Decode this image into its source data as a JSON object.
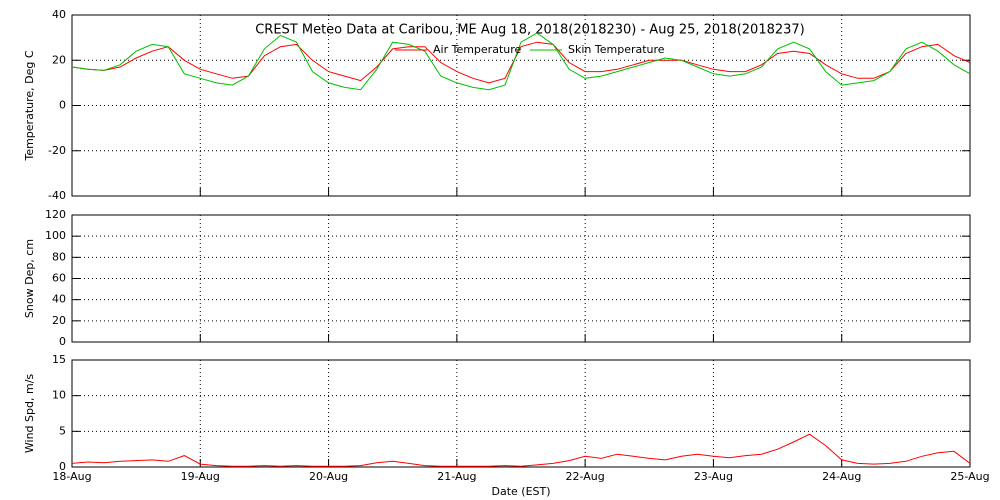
{
  "chart_data": [
    {
      "type": "line",
      "title": "CREST Meteo Data at Caribou, ME   Aug 18, 2018(2018230) - Aug 25, 2018(2018237)",
      "y_label": "Temperature, Deg C",
      "x": [
        0,
        0.125,
        0.25,
        0.375,
        0.5,
        0.625,
        0.75,
        0.875,
        1,
        1.125,
        1.25,
        1.375,
        1.5,
        1.625,
        1.75,
        1.875,
        2,
        2.125,
        2.25,
        2.375,
        2.5,
        2.625,
        2.75,
        2.875,
        3,
        3.125,
        3.25,
        3.375,
        3.5,
        3.625,
        3.75,
        3.875,
        4,
        4.125,
        4.25,
        4.375,
        4.5,
        4.625,
        4.75,
        4.875,
        5,
        5.125,
        5.25,
        5.375,
        5.5,
        5.625,
        5.75,
        5.875,
        6,
        6.125,
        6.25,
        6.375,
        6.5,
        6.625,
        6.75,
        6.875,
        7
      ],
      "series": [
        {
          "name": "Air Temperature",
          "color": "#ff0000",
          "values": [
            17,
            16,
            15.5,
            17,
            21,
            24,
            26,
            20,
            16,
            14,
            12,
            13,
            22,
            26,
            27,
            20,
            15,
            13,
            11,
            17,
            25,
            26,
            26,
            19,
            15,
            12,
            10,
            12,
            26,
            28,
            27,
            19,
            15,
            15,
            16,
            18,
            20,
            20,
            20,
            18,
            16,
            15,
            15,
            18,
            23,
            24,
            23,
            18,
            14,
            12,
            12,
            15,
            23,
            26,
            27,
            22,
            19
          ]
        },
        {
          "name": "Skin Temperature",
          "color": "#00c000",
          "values": [
            17,
            16,
            15.5,
            18,
            24,
            27,
            26,
            14,
            12,
            10,
            9,
            13,
            25,
            31,
            28,
            15,
            10,
            8,
            7,
            16,
            28,
            27,
            24,
            13,
            10,
            8,
            7,
            9,
            28,
            32,
            27,
            16,
            12,
            13,
            15,
            17,
            19,
            21,
            20,
            17,
            14,
            13,
            14,
            17,
            25,
            28,
            25,
            15,
            9,
            10,
            11,
            15,
            25,
            28,
            24,
            18,
            14
          ]
        }
      ],
      "xlim": [
        0,
        7
      ],
      "ylim": [
        -40,
        40
      ],
      "yticks": [
        -40,
        -20,
        0,
        20,
        40
      ],
      "grid": true
    },
    {
      "type": "line",
      "y_label": "Snow Dep, cm",
      "series": [],
      "xlim": [
        0,
        7
      ],
      "ylim": [
        0,
        120
      ],
      "yticks": [
        0,
        20,
        40,
        60,
        80,
        100,
        120
      ],
      "grid": true
    },
    {
      "type": "line",
      "y_label": "Wind Spd, m/s",
      "x_label": "Date (EST)",
      "x": [
        0,
        0.125,
        0.25,
        0.375,
        0.5,
        0.625,
        0.75,
        0.875,
        1,
        1.125,
        1.25,
        1.375,
        1.5,
        1.625,
        1.75,
        1.875,
        2,
        2.125,
        2.25,
        2.375,
        2.5,
        2.625,
        2.75,
        2.875,
        3,
        3.125,
        3.25,
        3.375,
        3.5,
        3.625,
        3.75,
        3.875,
        4,
        4.125,
        4.25,
        4.375,
        4.5,
        4.625,
        4.75,
        4.875,
        5,
        5.125,
        5.25,
        5.375,
        5.5,
        5.625,
        5.75,
        5.875,
        6,
        6.125,
        6.25,
        6.375,
        6.5,
        6.625,
        6.75,
        6.875,
        7
      ],
      "series": [
        {
          "color": "#ff0000",
          "values": [
            0.5,
            0.7,
            0.6,
            0.8,
            0.9,
            1.0,
            0.8,
            1.6,
            0.4,
            0.2,
            0.1,
            0.1,
            0.2,
            0.1,
            0.2,
            0.1,
            0.1,
            0.1,
            0.2,
            0.6,
            0.8,
            0.5,
            0.2,
            0.1,
            0.1,
            0.1,
            0.1,
            0.2,
            0.1,
            0.3,
            0.5,
            0.9,
            1.5,
            1.2,
            1.8,
            1.5,
            1.2,
            1.0,
            1.5,
            1.8,
            1.5,
            1.3,
            1.6,
            1.8,
            2.5,
            3.5,
            4.6,
            3.0,
            1.0,
            0.5,
            0.4,
            0.5,
            0.8,
            1.5,
            2.0,
            2.2,
            0.5
          ]
        }
      ],
      "xlim": [
        0,
        7
      ],
      "xticks": [
        {
          "value": 0,
          "label": "18-Aug"
        },
        {
          "value": 1,
          "label": "19-Aug"
        },
        {
          "value": 2,
          "label": "20-Aug"
        },
        {
          "value": 3,
          "label": "21-Aug"
        },
        {
          "value": 4,
          "label": "22-Aug"
        },
        {
          "value": 5,
          "label": "23-Aug"
        },
        {
          "value": 6,
          "label": "24-Aug"
        },
        {
          "value": 7,
          "label": "25-Aug"
        }
      ],
      "ylim": [
        0,
        15
      ],
      "yticks": [
        0,
        5,
        10,
        15
      ],
      "grid": true
    }
  ]
}
